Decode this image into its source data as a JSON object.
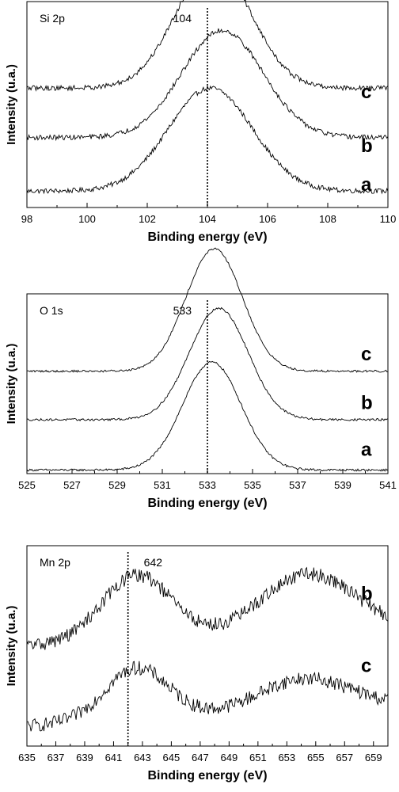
{
  "chart_data": [
    {
      "type": "line",
      "title": "Si 2p",
      "xlabel": "Binding energy (eV)",
      "ylabel": "Intensity (u.a.)",
      "xlim": [
        98,
        110
      ],
      "xticks": [
        98,
        100,
        102,
        104,
        106,
        108,
        110
      ],
      "reference_line": {
        "x": 104,
        "label": "104",
        "style": "dotted"
      },
      "noise": 0.012,
      "series": [
        {
          "name": "a",
          "baseline": 0.08,
          "peaks": [
            {
              "center": 104.1,
              "amp": 0.5,
              "width": 1.4
            }
          ]
        },
        {
          "name": "b",
          "baseline": 0.34,
          "peaks": [
            {
              "center": 104.5,
              "amp": 0.52,
              "width": 1.35
            }
          ]
        },
        {
          "name": "c",
          "baseline": 0.58,
          "peaks": [
            {
              "center": 104.2,
              "amp": 0.6,
              "width": 1.25
            }
          ]
        }
      ]
    },
    {
      "type": "line",
      "title": "O 1s",
      "xlabel": "Binding energy (eV)",
      "ylabel": "Intensity (u.a.)",
      "xlim": [
        525,
        541
      ],
      "xticks": [
        525,
        527,
        529,
        531,
        533,
        535,
        537,
        539,
        541
      ],
      "reference_line": {
        "x": 533,
        "label": "533",
        "style": "dotted"
      },
      "noise": 0.006,
      "series": [
        {
          "name": "a",
          "baseline": 0.02,
          "peaks": [
            {
              "center": 533.2,
              "amp": 0.6,
              "width": 1.3
            }
          ]
        },
        {
          "name": "b",
          "baseline": 0.3,
          "peaks": [
            {
              "center": 533.5,
              "amp": 0.62,
              "width": 1.3
            }
          ]
        },
        {
          "name": "c",
          "baseline": 0.57,
          "peaks": [
            {
              "center": 533.3,
              "amp": 0.68,
              "width": 1.25
            }
          ]
        }
      ]
    },
    {
      "type": "line",
      "title": "Mn 2p",
      "xlabel": "Binding energy (eV)",
      "ylabel": "Intensity (u.a.)",
      "xlim": [
        635,
        660
      ],
      "xticks": [
        635,
        637,
        639,
        641,
        643,
        645,
        647,
        649,
        651,
        653,
        655,
        657,
        659
      ],
      "reference_line": {
        "x": 642,
        "label": "642",
        "style": "dotted"
      },
      "noise": 0.035,
      "series": [
        {
          "name": "c",
          "baseline": 0.1,
          "slope": 0.004,
          "peaks": [
            {
              "center": 642.6,
              "amp": 0.26,
              "width": 2.2
            },
            {
              "center": 654.2,
              "amp": 0.16,
              "width": 3.2
            }
          ]
        },
        {
          "name": "b",
          "baseline": 0.5,
          "slope": 0.003,
          "peaks": [
            {
              "center": 642.6,
              "amp": 0.33,
              "width": 2.4
            },
            {
              "center": 654.5,
              "amp": 0.3,
              "width": 3.3
            }
          ]
        }
      ]
    }
  ]
}
